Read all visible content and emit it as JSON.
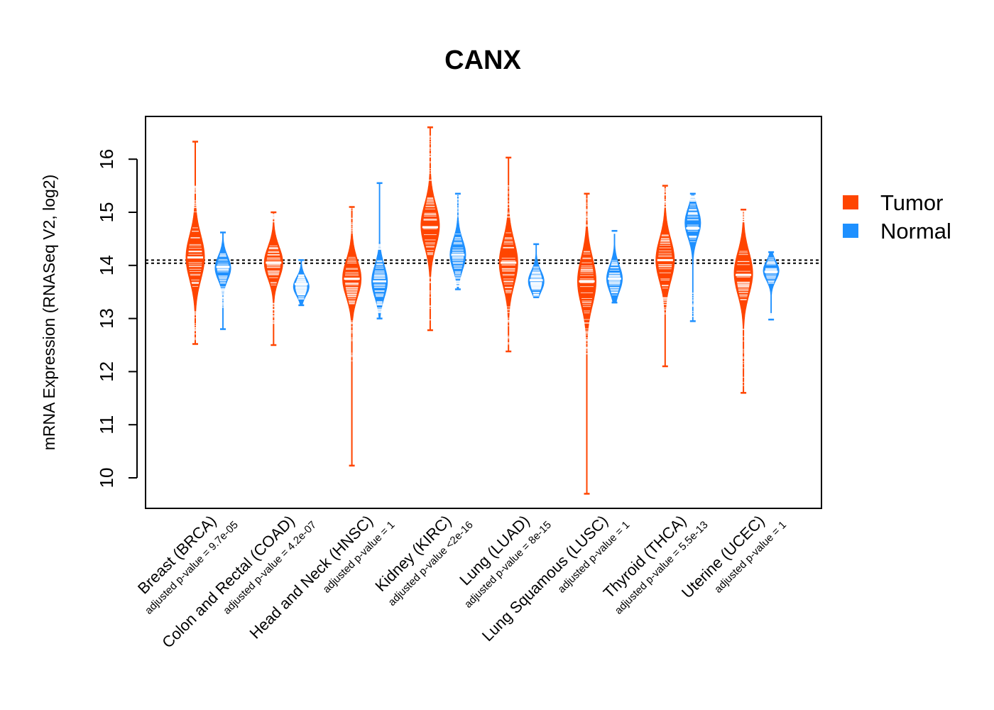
{
  "chart_data": {
    "type": "beanplot",
    "title": "CANX",
    "xlabel": "",
    "ylabel": "mRNA Expression (RNASeq V2, log2)",
    "ylim": [
      9.5,
      16.8
    ],
    "yticks": [
      10,
      11,
      12,
      13,
      14,
      15,
      16
    ],
    "reference_lines": [
      14.04,
      14.1
    ],
    "legend": {
      "position": "right",
      "entries": [
        {
          "name": "Tumor",
          "color": "#ff4500"
        },
        {
          "name": "Normal",
          "color": "#1e90ff"
        }
      ]
    },
    "categories": [
      {
        "label": "Breast (BRCA)",
        "pvalue": "adjusted p-value = 9.7e-05",
        "tumor": {
          "median": 14.15,
          "min": 12.52,
          "max": 16.33,
          "peak": 14.15,
          "spread": 0.42,
          "upper_tail": [
            15.0,
            15.5
          ],
          "lower_tail": [
            12.6,
            13.2
          ]
        },
        "normal": {
          "median": 13.97,
          "min": 12.8,
          "max": 14.62,
          "peak": 13.95,
          "spread": 0.22,
          "upper_tail": [],
          "lower_tail": [
            13.2,
            13.6
          ]
        }
      },
      {
        "label": "Colon and Rectal (COAD)",
        "pvalue": "adjusted p-value = 4.2e-07",
        "tumor": {
          "median": 14.05,
          "min": 12.5,
          "max": 15.0,
          "peak": 14.05,
          "spread": 0.3,
          "upper_tail": [
            14.8,
            15.0
          ],
          "lower_tail": [
            12.9,
            13.3
          ]
        },
        "normal": {
          "median": 13.65,
          "min": 13.25,
          "max": 14.1,
          "peak": 13.6,
          "spread": 0.17,
          "upper_tail": [],
          "lower_tail": []
        }
      },
      {
        "label": "Head and Neck (HNSC)",
        "pvalue": "adjusted p-value = 1",
        "tumor": {
          "median": 13.75,
          "min": 10.23,
          "max": 15.1,
          "peak": 13.75,
          "spread": 0.35,
          "upper_tail": [
            14.6,
            15.1
          ],
          "lower_tail": [
            12.1,
            13.0
          ]
        },
        "normal": {
          "median": 13.7,
          "min": 13.0,
          "max": 15.55,
          "peak": 13.7,
          "spread": 0.3,
          "upper_tail": [
            14.3,
            14.4
          ],
          "lower_tail": [
            13.1,
            13.3
          ]
        }
      },
      {
        "label": "Kidney (KIRC)",
        "pvalue": "adjusted p-value <2e-16",
        "tumor": {
          "median": 14.72,
          "min": 12.78,
          "max": 16.6,
          "peak": 14.75,
          "spread": 0.4,
          "upper_tail": [
            15.6,
            16.5
          ],
          "lower_tail": [
            12.9,
            13.8
          ]
        },
        "normal": {
          "median": 14.2,
          "min": 13.55,
          "max": 15.35,
          "peak": 14.2,
          "spread": 0.28,
          "upper_tail": [
            14.9,
            15.35
          ],
          "lower_tail": [
            13.6,
            13.8
          ]
        }
      },
      {
        "label": "Lung (LUAD)",
        "pvalue": "adjusted p-value = 8e-15",
        "tumor": {
          "median": 14.05,
          "min": 12.38,
          "max": 16.03,
          "peak": 14.05,
          "spread": 0.42,
          "upper_tail": [
            14.9,
            15.5
          ],
          "lower_tail": [
            12.5,
            13.3
          ]
        },
        "normal": {
          "median": 13.72,
          "min": 13.4,
          "max": 14.4,
          "peak": 13.7,
          "spread": 0.2,
          "upper_tail": [],
          "lower_tail": []
        }
      },
      {
        "label": "Lung Squamous (LUSC)",
        "pvalue": "adjusted p-value = 1",
        "tumor": {
          "median": 13.7,
          "min": 9.7,
          "max": 15.35,
          "peak": 13.7,
          "spread": 0.45,
          "upper_tail": [
            14.6,
            15.35
          ],
          "lower_tail": [
            12.3,
            13.0
          ]
        },
        "normal": {
          "median": 13.75,
          "min": 13.3,
          "max": 14.65,
          "peak": 13.75,
          "spread": 0.25,
          "upper_tail": [
            14.6,
            14.65
          ],
          "lower_tail": []
        }
      },
      {
        "label": "Thyroid (THCA)",
        "pvalue": "adjusted p-value = 5.5e-13",
        "tumor": {
          "median": 14.1,
          "min": 12.1,
          "max": 15.5,
          "peak": 14.1,
          "spread": 0.4,
          "upper_tail": [
            15.0,
            15.5
          ],
          "lower_tail": [
            13.0,
            13.4
          ]
        },
        "normal": {
          "median": 14.7,
          "min": 12.95,
          "max": 15.35,
          "peak": 14.8,
          "spread": 0.28,
          "upper_tail": [
            15.2,
            15.35
          ],
          "lower_tail": [
            13.0,
            13.5
          ]
        }
      },
      {
        "label": "Uterine (UCEC)",
        "pvalue": "adjusted p-value = 1",
        "tumor": {
          "median": 13.82,
          "min": 11.6,
          "max": 15.05,
          "peak": 13.85,
          "spread": 0.4,
          "upper_tail": [
            14.8,
            15.05
          ],
          "lower_tail": [
            11.6,
            12.9
          ]
        },
        "normal": {
          "median": 13.88,
          "min": 12.98,
          "max": 14.25,
          "peak": 13.9,
          "spread": 0.18,
          "upper_tail": [],
          "lower_tail": [
            13.0,
            13.1
          ]
        }
      }
    ]
  }
}
